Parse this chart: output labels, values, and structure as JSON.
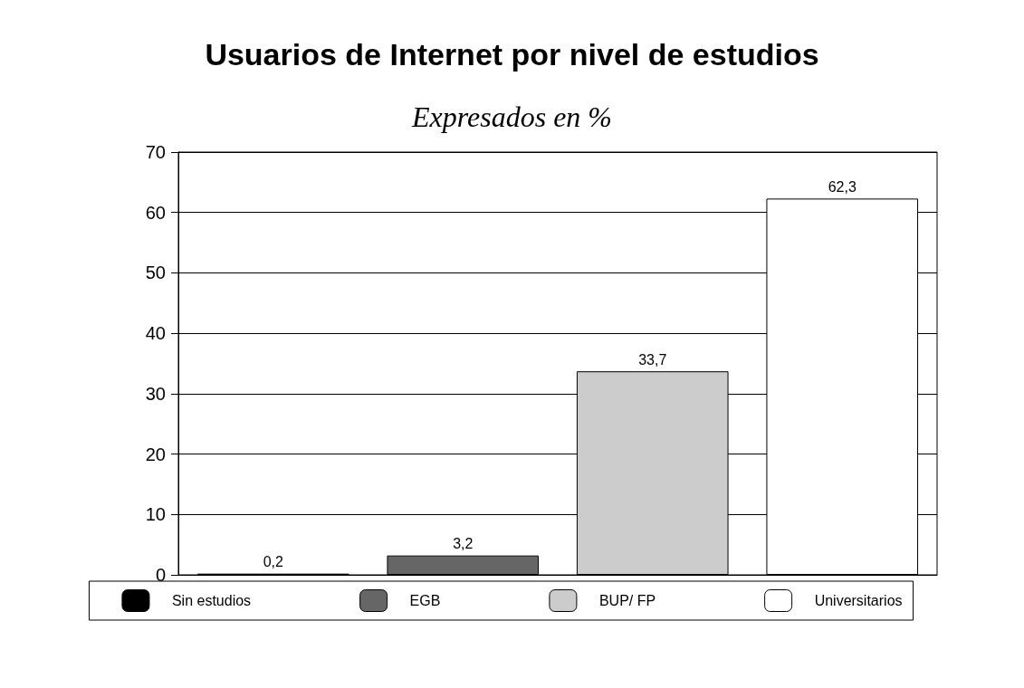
{
  "chart_data": {
    "type": "bar",
    "title": "Usuarios de Internet por nivel de estudios",
    "subtitle": "Expresados en %",
    "categories": [
      null,
      null,
      null,
      null
    ],
    "series": [
      {
        "name": "Sin estudios",
        "color": "#000000",
        "values": [
          0.2,
          null,
          null,
          null
        ],
        "value_labels": [
          "0,2",
          null,
          null,
          null
        ]
      },
      {
        "name": "EGB",
        "color": "#666666",
        "values": [
          null,
          3.2,
          null,
          null
        ],
        "value_labels": [
          null,
          "3,2",
          null,
          null
        ]
      },
      {
        "name": "BUP/ FP",
        "color": "#cccccc",
        "values": [
          null,
          null,
          33.7,
          null
        ],
        "value_labels": [
          null,
          null,
          "33,7",
          null
        ]
      },
      {
        "name": "Universitarios",
        "color": "#ffffff",
        "values": [
          null,
          null,
          null,
          62.3
        ],
        "value_labels": [
          null,
          null,
          null,
          "62,3"
        ]
      }
    ],
    "ylim": [
      0,
      70
    ],
    "yticks": [
      0,
      10,
      20,
      30,
      40,
      50,
      60,
      70
    ],
    "grid": "y",
    "legend": "bottom"
  }
}
